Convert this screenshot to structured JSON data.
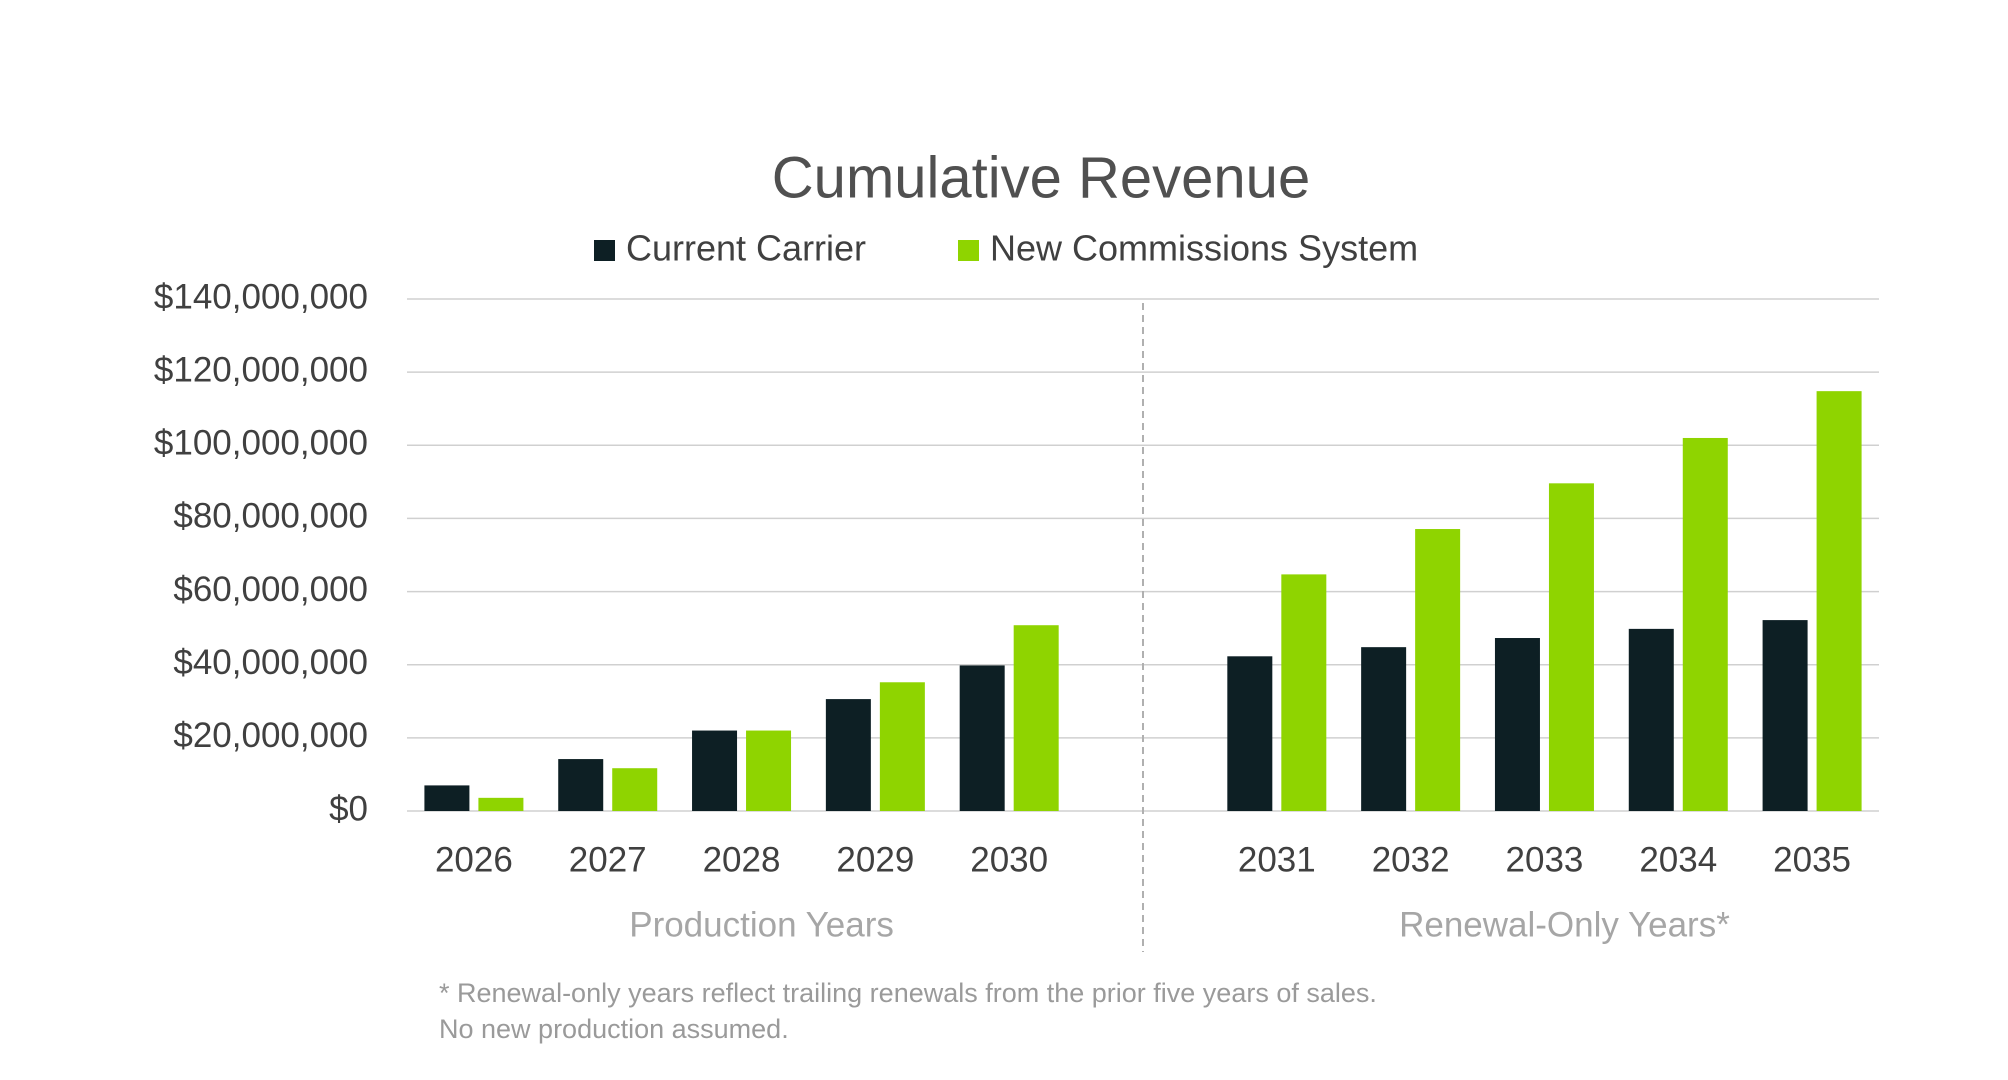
{
  "chart_data": {
    "type": "bar",
    "title": "Cumulative Revenue",
    "categories": [
      "2026",
      "2027",
      "2028",
      "2029",
      "2030",
      "2031",
      "2032",
      "2033",
      "2034",
      "2035"
    ],
    "groups": [
      "Production Years",
      "Renewal-Only Years*"
    ],
    "series": [
      {
        "name": "Current Carrier",
        "color": "#0d1f24",
        "values": [
          7000000,
          14200000,
          22000000,
          30600000,
          39800000,
          42300000,
          44800000,
          47300000,
          49800000,
          52200000
        ]
      },
      {
        "name": "New Commissions System",
        "color": "#8fd400",
        "values": [
          3600000,
          11700000,
          22000000,
          35200000,
          50800000,
          64700000,
          77100000,
          89600000,
          102000000,
          114800000
        ]
      }
    ],
    "ylim": [
      0,
      140000000
    ],
    "yticks": [
      {
        "value": 0,
        "label": "$0"
      },
      {
        "value": 20000000,
        "label": "$20,000,000"
      },
      {
        "value": 40000000,
        "label": "$40,000,000"
      },
      {
        "value": 60000000,
        "label": "$60,000,000"
      },
      {
        "value": 80000000,
        "label": "$80,000,000"
      },
      {
        "value": 100000000,
        "label": "$100,000,000"
      },
      {
        "value": 120000000,
        "label": "$120,000,000"
      },
      {
        "value": 140000000,
        "label": "$140,000,000"
      }
    ],
    "grid": true,
    "legend": "top",
    "footnote": [
      "* Renewal-only years reflect trailing renewals from the prior five years of sales.",
      "No new production assumed."
    ]
  }
}
